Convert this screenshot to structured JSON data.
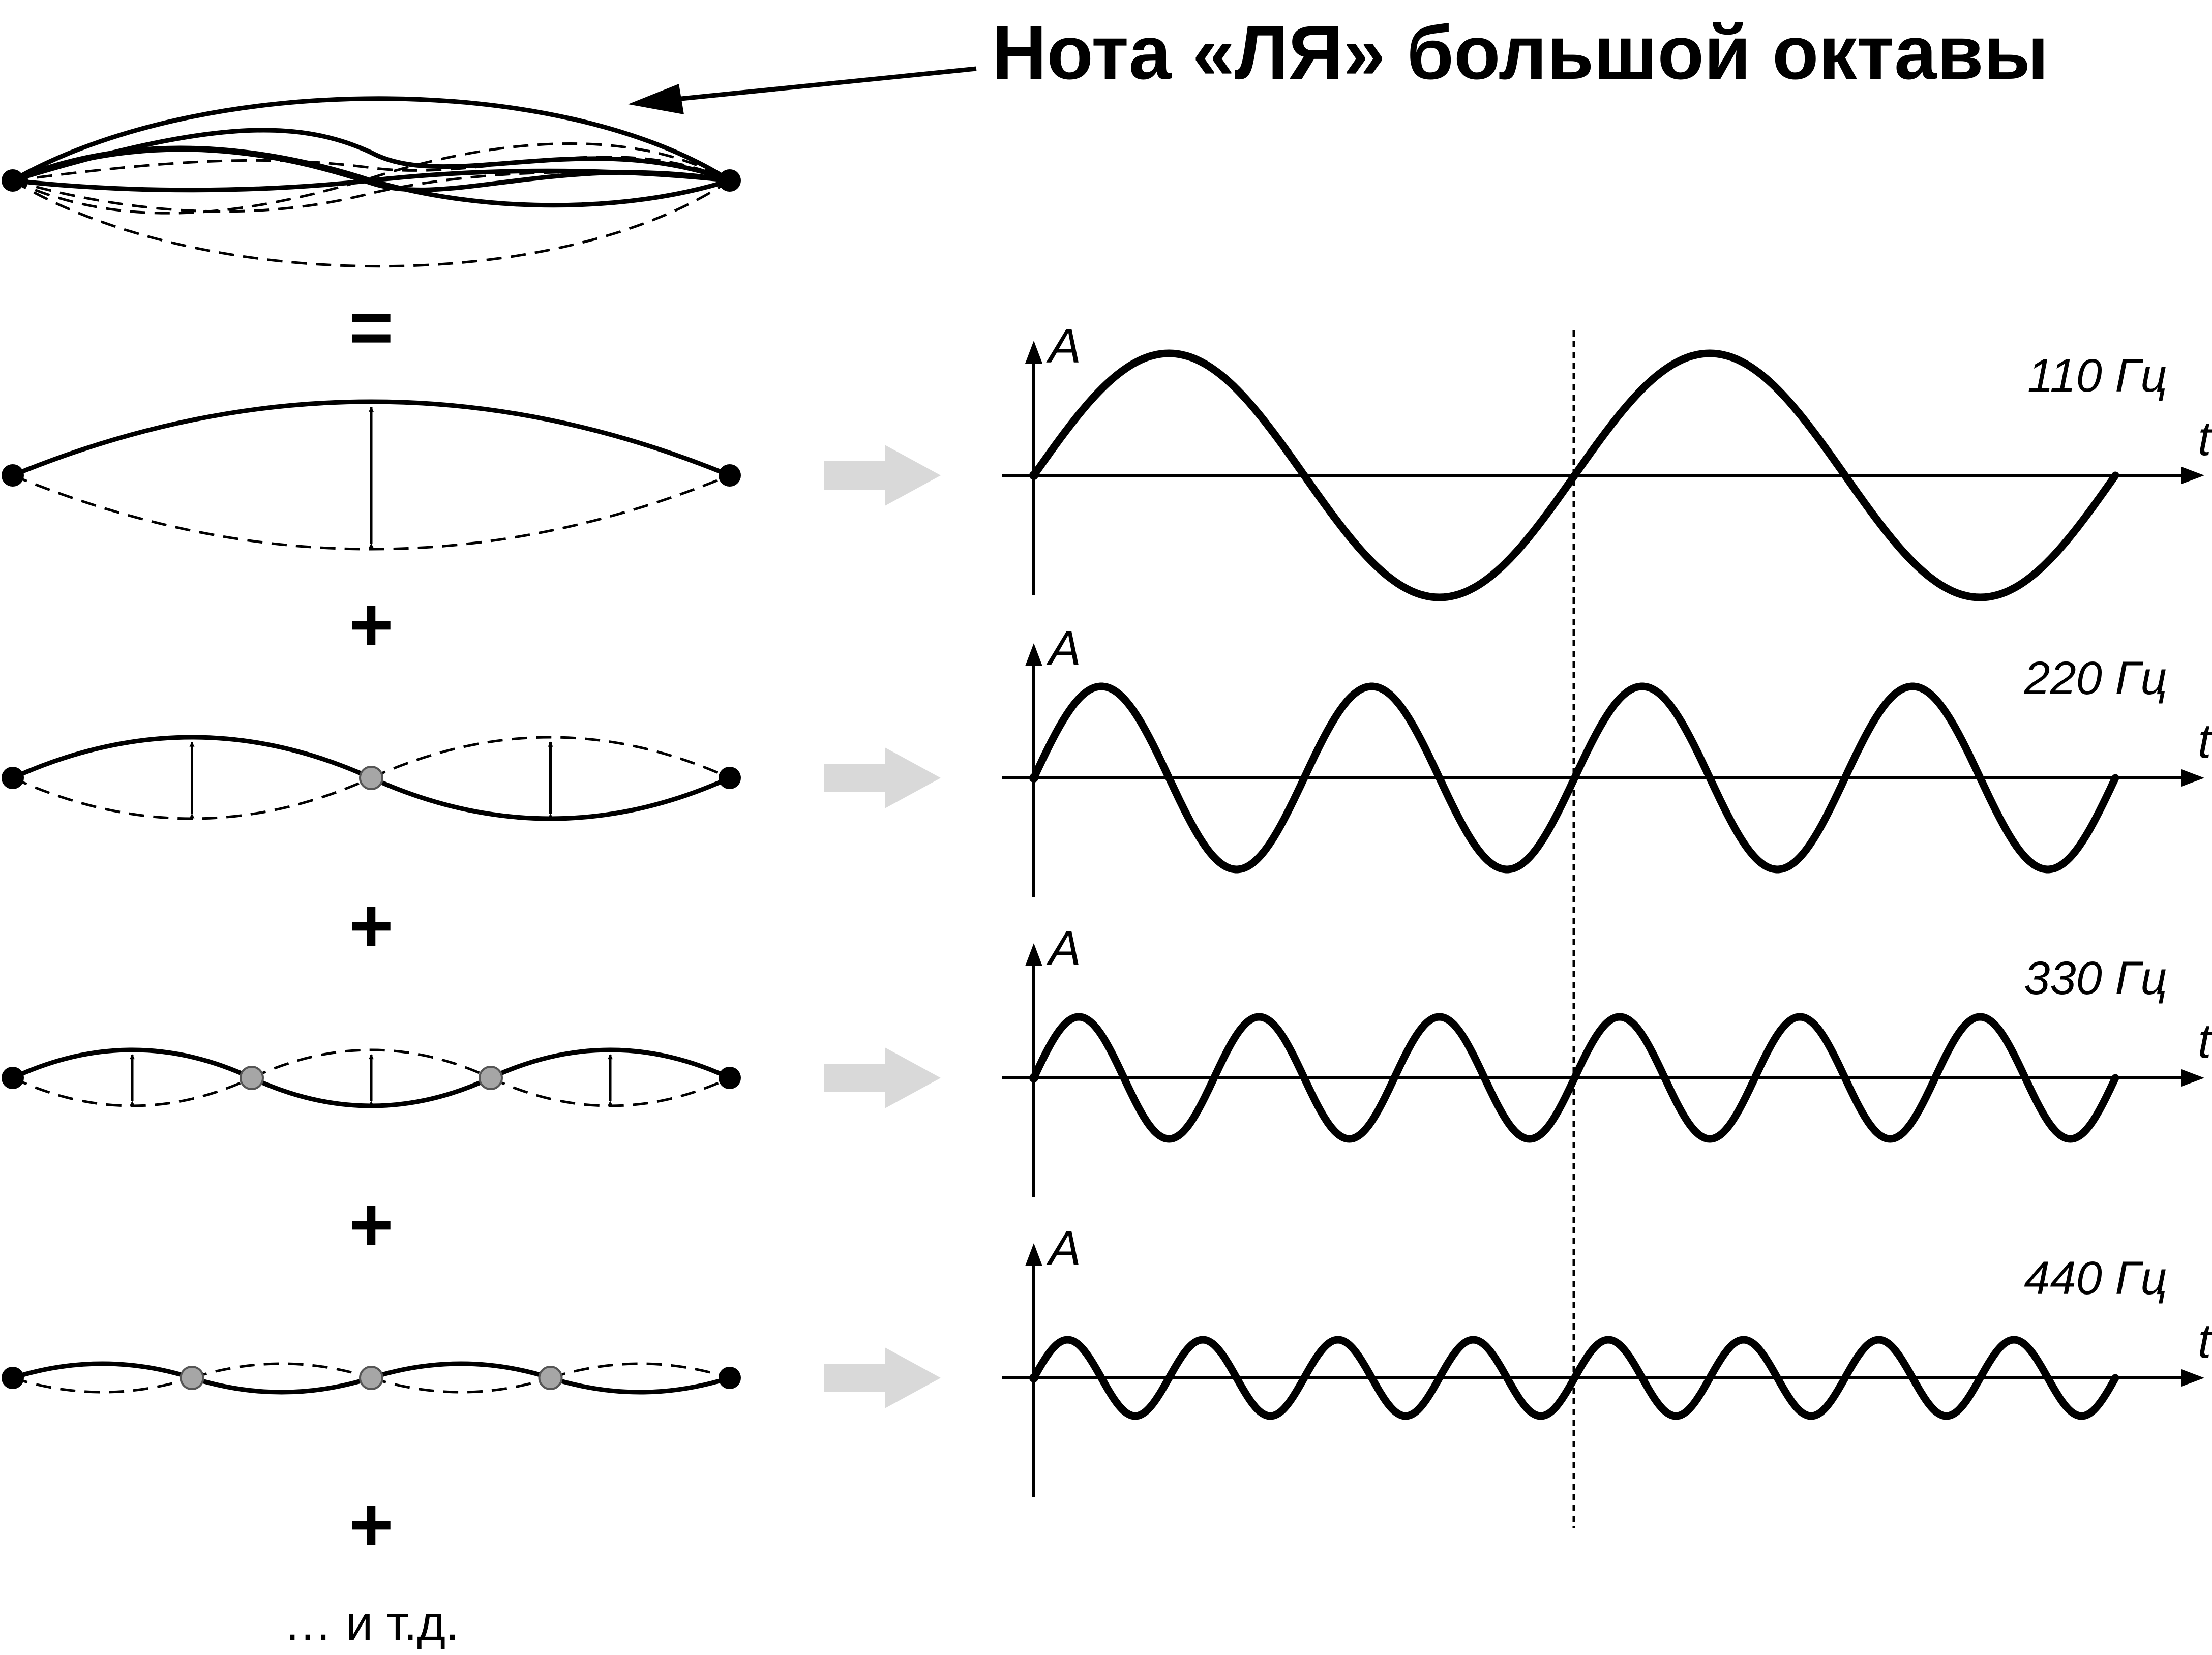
{
  "title": "Нота «ЛЯ» большой октавы",
  "operators": [
    "=",
    "+",
    "+",
    "+",
    "+"
  ],
  "etc": "… и т.д.",
  "axis_labels": {
    "amplitude": "A",
    "time": "t"
  },
  "harmonics": [
    {
      "n": 1,
      "frequency_label": "110 Гц",
      "periods_shown": 2
    },
    {
      "n": 2,
      "frequency_label": "220 Гц",
      "periods_shown": 4
    },
    {
      "n": 3,
      "frequency_label": "330 Гц",
      "periods_shown": 6
    },
    {
      "n": 4,
      "frequency_label": "440 Гц",
      "periods_shown": 8
    }
  ],
  "colors": {
    "line": "#000000",
    "node": "#a6a6a6",
    "arrow": "#d9d9d9"
  }
}
